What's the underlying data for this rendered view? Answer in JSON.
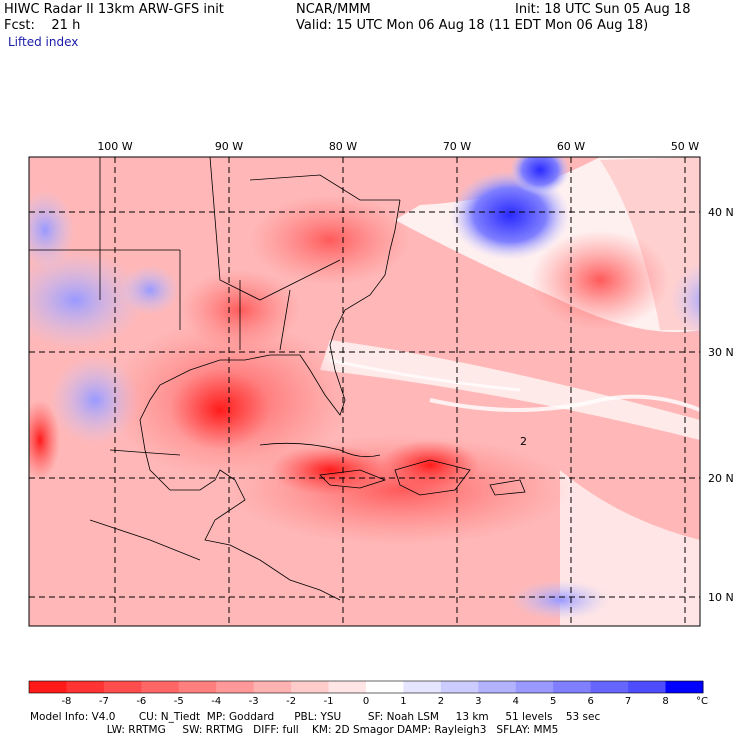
{
  "header": {
    "title": "HIWC Radar II 13km ARW-GFS init",
    "org": "NCAR/MMM",
    "init": "Init: 18 UTC Sun 05 Aug 18",
    "fcst": "Fcst:    21 h",
    "valid": "Valid: 15 UTC Mon 06 Aug 18 (11 EDT Mon 06 Aug 18)",
    "field": "Lifted index"
  },
  "map": {
    "lon_labels": [
      "100 W",
      "90 W",
      "80 W",
      "70 W",
      "60 W",
      "50 W"
    ],
    "lat_labels": [
      "40 N",
      "30 N",
      "20 N",
      "10 N"
    ],
    "contour_label": "2"
  },
  "colorbar": {
    "unit": "°C",
    "ticks": [
      "-8",
      "-7",
      "-6",
      "-5",
      "-4",
      "-3",
      "-2",
      "-1",
      "0",
      "1",
      "2",
      "3",
      "4",
      "5",
      "6",
      "7",
      "8"
    ],
    "colors": [
      "#ff1a1a",
      "#ff3333",
      "#ff4d4d",
      "#ff6666",
      "#ff7f7f",
      "#ff9999",
      "#ffb2b2",
      "#ffcccc",
      "#ffe5e5",
      "#ffffff",
      "#e5e5ff",
      "#ccccff",
      "#b2b2ff",
      "#9999ff",
      "#7f7fff",
      "#6666ff",
      "#4d4dff",
      "#0000ff"
    ]
  },
  "footer": {
    "line1": "Model Info: V4.0       CU: N_Tiedt  MP: Goddard      PBL: YSU        SF: Noah LSM     13 km     51 levels    53 sec",
    "line2": "                       LW: RRTMG     SW: RRTMG   DIFF: full    KM: 2D Smagor DAMP: Rayleigh3   SFLAY: MM5"
  }
}
